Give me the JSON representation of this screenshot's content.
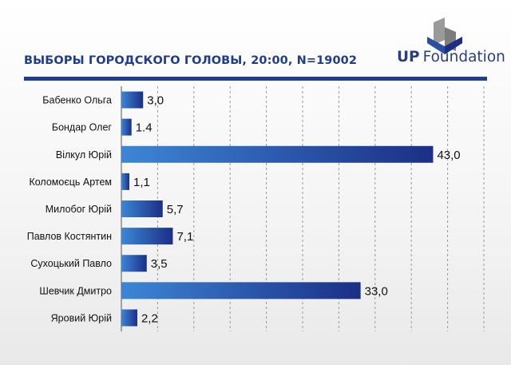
{
  "header": {
    "title": "ВЫБОРЫ ГОРОДСКОГО ГОЛОВЫ, 20:00, N=19002",
    "logo_text_bold": "UP",
    "logo_text_rest": "Foundation"
  },
  "colors": {
    "accent": "#1f3d8c",
    "bar_light": "#3d86d6",
    "bar_dark": "#1b2f86",
    "logo_gray": "#9a9a9a"
  },
  "chart_data": {
    "type": "bar",
    "orientation": "horizontal",
    "categories": [
      "Бабенко Ольга",
      "Бондар Олег",
      "Вілкул Юрій",
      "Коломоєць Артем",
      "Милобог Юрій",
      "Павлов Костянтин",
      "Сухоцький Павло",
      "Шевчик Дмитро",
      "Яровий Юрій"
    ],
    "values": [
      3.0,
      1.4,
      43.0,
      1.1,
      5.7,
      7.1,
      3.5,
      33.0,
      2.2
    ],
    "value_labels": [
      "3,0",
      "1.4",
      "43,0",
      "1,1",
      "5,7",
      "7,1",
      "3,5",
      "33,0",
      "2,2"
    ],
    "xlim": [
      0,
      50
    ],
    "grid": true
  }
}
